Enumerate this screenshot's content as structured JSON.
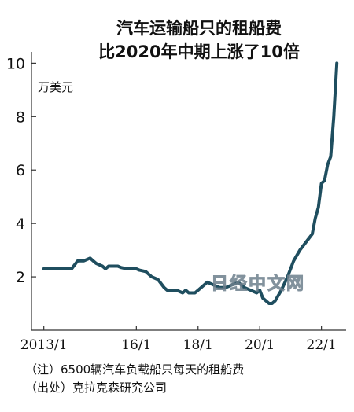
{
  "title_line1": "汽车运输船只的租船费",
  "title_line2": "比2020年中期上涨了10倍",
  "unit_label": "万美元",
  "note": "（注）6500辆汽车负载船只每天的租船费",
  "source": "（出处）克拉克森研究公司",
  "watermark": "日经中文网",
  "colors": {
    "line": "#1f4e5f",
    "axis": "#333333"
  },
  "chart_data": {
    "type": "line",
    "xlabel": "",
    "ylabel": "万美元",
    "x_ticks": [
      "2013/1",
      "16/1",
      "18/1",
      "20/1",
      "22/1"
    ],
    "x_tick_years": [
      2013.0,
      2016.0,
      2018.0,
      2020.0,
      2022.0
    ],
    "xlim": [
      2012.6,
      2022.8
    ],
    "y_ticks": [
      2,
      4,
      6,
      8,
      10
    ],
    "ylim": [
      0,
      10.6
    ],
    "grid": false,
    "series": [
      {
        "x": [
          2013.0,
          2013.3,
          2013.6,
          2013.9,
          2014.1,
          2014.3,
          2014.5,
          2014.6,
          2014.7,
          2014.9,
          2015.0,
          2015.1,
          2015.3,
          2015.4,
          2015.5,
          2015.7,
          2015.9,
          2016.0,
          2016.1,
          2016.3,
          2016.5,
          2016.7,
          2016.9,
          2017.0,
          2017.1,
          2017.3,
          2017.5,
          2017.6,
          2017.7,
          2017.9,
          2018.0,
          2018.1,
          2018.3,
          2018.5,
          2018.7,
          2018.9,
          2019.1,
          2019.3,
          2019.5,
          2019.7,
          2019.9,
          2020.0,
          2020.1,
          2020.3,
          2020.4,
          2020.5,
          2020.7,
          2020.9,
          2021.1,
          2021.3,
          2021.5,
          2021.7,
          2021.8,
          2021.9,
          2022.0,
          2022.1,
          2022.2,
          2022.3,
          2022.4,
          2022.5
        ],
        "y": [
          2.3,
          2.3,
          2.3,
          2.3,
          2.6,
          2.6,
          2.7,
          2.6,
          2.5,
          2.4,
          2.3,
          2.4,
          2.4,
          2.4,
          2.35,
          2.3,
          2.3,
          2.3,
          2.25,
          2.2,
          2.0,
          1.9,
          1.6,
          1.5,
          1.5,
          1.5,
          1.4,
          1.5,
          1.4,
          1.4,
          1.5,
          1.6,
          1.8,
          1.7,
          1.6,
          1.6,
          1.7,
          1.8,
          1.6,
          1.5,
          1.4,
          1.5,
          1.2,
          1.0,
          1.0,
          1.1,
          1.5,
          2.0,
          2.6,
          3.0,
          3.3,
          3.6,
          4.2,
          4.6,
          5.5,
          5.6,
          6.2,
          6.5,
          8.0,
          10.0
        ]
      }
    ]
  }
}
